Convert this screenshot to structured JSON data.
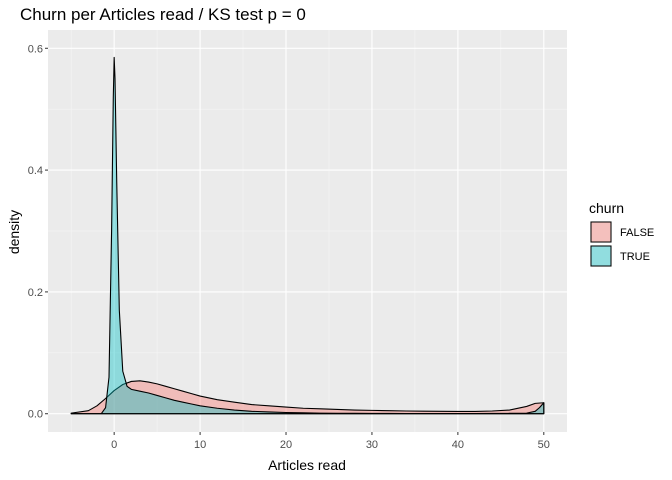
{
  "chart_data": {
    "type": "area",
    "title": "Churn per Articles read / KS test p = 0",
    "xlabel": "Articles read",
    "ylabel": "density",
    "xlim": [
      -5.0,
      50.0
    ],
    "ylim": [
      0,
      0.6
    ],
    "x_ticks": [
      0,
      10,
      20,
      30,
      40,
      50
    ],
    "x_tick_labels": [
      "0",
      "10",
      "20",
      "30",
      "40",
      "50"
    ],
    "y_ticks": [
      0.0,
      0.2,
      0.4,
      0.6
    ],
    "y_tick_labels": [
      "0.0",
      "0.2",
      "0.4",
      "0.6"
    ],
    "grid": true,
    "legend": {
      "title": "churn",
      "position": "right"
    },
    "series": [
      {
        "name": "FALSE",
        "color": "#F8766D",
        "x": [
          -5,
          -3,
          -2,
          -1,
          0,
          0.5,
          1,
          2,
          3,
          4,
          5,
          6,
          7,
          8,
          9,
          10,
          12,
          14,
          16,
          18,
          20,
          22,
          24,
          26,
          28,
          30,
          32,
          34,
          36,
          38,
          40,
          42,
          44,
          46,
          48,
          49,
          50
        ],
        "values": [
          0.001,
          0.005,
          0.013,
          0.025,
          0.038,
          0.043,
          0.048,
          0.053,
          0.054,
          0.052,
          0.049,
          0.045,
          0.041,
          0.037,
          0.033,
          0.029,
          0.023,
          0.019,
          0.015,
          0.013,
          0.011,
          0.009,
          0.008,
          0.007,
          0.006,
          0.0055,
          0.005,
          0.0045,
          0.0042,
          0.004,
          0.0038,
          0.0037,
          0.0045,
          0.006,
          0.012,
          0.017,
          0.018
        ]
      },
      {
        "name": "TRUE",
        "color": "#00BFC4",
        "x": [
          -5,
          -3,
          -1.5,
          -1,
          -0.6,
          -0.3,
          -0.1,
          0,
          0.1,
          0.3,
          0.6,
          1,
          1.5,
          2,
          3,
          4,
          5,
          6,
          7,
          8,
          9,
          10,
          12,
          14,
          16,
          18,
          20,
          22,
          24,
          26,
          28,
          30,
          32,
          34,
          36,
          38,
          40,
          42,
          44,
          46,
          48,
          49,
          49.5,
          50
        ],
        "values": [
          0.0,
          0.0,
          0.0,
          0.01,
          0.06,
          0.3,
          0.52,
          0.585,
          0.55,
          0.38,
          0.17,
          0.07,
          0.045,
          0.04,
          0.037,
          0.034,
          0.03,
          0.026,
          0.022,
          0.019,
          0.016,
          0.013,
          0.009,
          0.006,
          0.004,
          0.003,
          0.002,
          0.0015,
          0.001,
          0.0008,
          0.0006,
          0.0005,
          0.0004,
          0.0003,
          0.0003,
          0.0003,
          0.0003,
          0.0003,
          0.0004,
          0.0006,
          0.001,
          0.004,
          0.01,
          0.018
        ]
      }
    ]
  }
}
